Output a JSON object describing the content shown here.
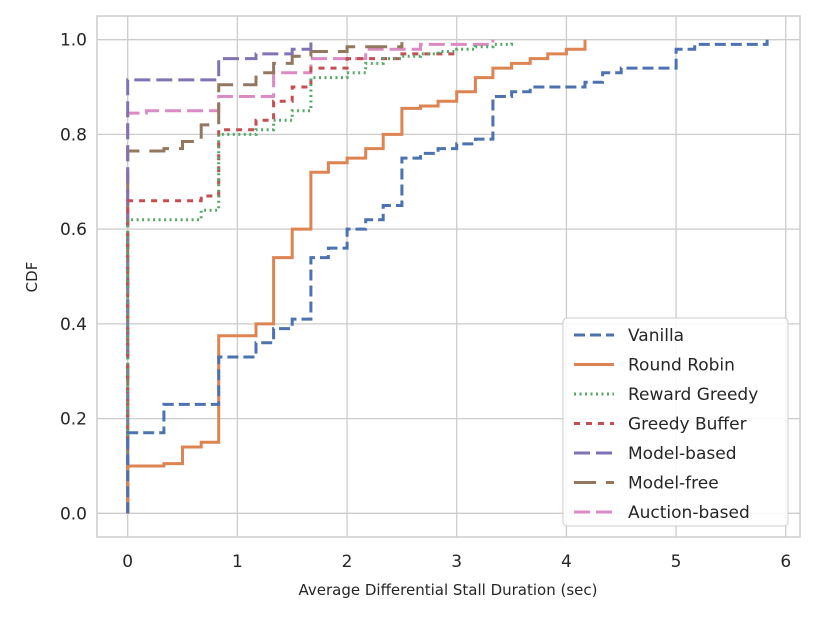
{
  "chart_data": {
    "type": "line",
    "subtype": "step-cdf",
    "title": "",
    "xlabel": "Average Differential Stall Duration (sec)",
    "ylabel": "CDF",
    "xlim": [
      -0.28,
      6.13
    ],
    "ylim": [
      -0.05,
      1.05
    ],
    "xticks": [
      0,
      1,
      2,
      3,
      4,
      5,
      6
    ],
    "yticks": [
      0.0,
      0.2,
      0.4,
      0.6,
      0.8,
      1.0
    ],
    "xtick_labels": [
      "0",
      "1",
      "2",
      "3",
      "4",
      "5",
      "6"
    ],
    "ytick_labels": [
      "0.0",
      "0.2",
      "0.4",
      "0.6",
      "0.8",
      "1.0"
    ],
    "grid": true,
    "legend_position": "bottom-right",
    "series": [
      {
        "name": "Vanilla",
        "color": "#4c72b0",
        "dash": "dashed",
        "x": [
          0,
          0,
          0.33,
          0.83,
          0.83,
          1.17,
          1.33,
          1.5,
          1.67,
          1.67,
          1.83,
          2.0,
          2.17,
          2.33,
          2.5,
          2.5,
          2.67,
          2.83,
          3.0,
          3.17,
          3.33,
          3.33,
          3.5,
          3.67,
          3.83,
          4.17,
          4.33,
          4.5,
          4.83,
          5.0,
          5.0,
          5.17,
          5.5,
          5.83
        ],
        "y": [
          0,
          0.17,
          0.23,
          0.25,
          0.33,
          0.36,
          0.39,
          0.41,
          0.42,
          0.54,
          0.56,
          0.6,
          0.62,
          0.65,
          0.67,
          0.75,
          0.76,
          0.77,
          0.78,
          0.79,
          0.81,
          0.88,
          0.89,
          0.9,
          0.9,
          0.91,
          0.93,
          0.94,
          0.94,
          0.95,
          0.98,
          0.99,
          0.99,
          1.0
        ]
      },
      {
        "name": "Round Robin",
        "color": "#dd8452",
        "dash": "solid",
        "x": [
          0,
          0,
          0.33,
          0.5,
          0.67,
          0.83,
          0.83,
          1.17,
          1.33,
          1.33,
          1.5,
          1.5,
          1.67,
          1.67,
          1.83,
          2.0,
          2.17,
          2.33,
          2.5,
          2.5,
          2.67,
          2.83,
          3.0,
          3.17,
          3.33,
          3.5,
          3.67,
          3.83,
          4.0,
          4.17,
          4.17
        ],
        "y": [
          0,
          0.1,
          0.105,
          0.14,
          0.15,
          0.23,
          0.375,
          0.4,
          0.41,
          0.54,
          0.545,
          0.6,
          0.61,
          0.72,
          0.74,
          0.75,
          0.77,
          0.8,
          0.82,
          0.855,
          0.86,
          0.87,
          0.89,
          0.92,
          0.94,
          0.95,
          0.96,
          0.97,
          0.98,
          0.985,
          1.0
        ]
      },
      {
        "name": "Reward Greedy",
        "color": "#55a868",
        "dash": "dotted",
        "x": [
          0,
          0,
          0.67,
          0.83,
          0.83,
          1.17,
          1.33,
          1.5,
          1.67,
          1.67,
          2.0,
          2.17,
          2.33,
          2.5,
          2.67,
          2.83,
          3.0,
          3.17,
          3.33,
          3.5
        ],
        "y": [
          0,
          0.62,
          0.64,
          0.67,
          0.8,
          0.81,
          0.83,
          0.85,
          0.88,
          0.92,
          0.93,
          0.95,
          0.96,
          0.965,
          0.97,
          0.975,
          0.98,
          0.985,
          0.99,
          1.0
        ]
      },
      {
        "name": "Greedy Buffer",
        "color": "#c44e52",
        "dash": "short-dashed",
        "x": [
          0,
          0,
          0.67,
          0.83,
          0.83,
          1.17,
          1.33,
          1.5,
          1.67,
          2.0,
          2.5,
          3.0
        ],
        "y": [
          0,
          0.66,
          0.67,
          0.68,
          0.81,
          0.83,
          0.87,
          0.9,
          0.94,
          0.96,
          0.97,
          0.98
        ]
      },
      {
        "name": "Model-based",
        "color": "#8172b3",
        "dash": "long-dashed",
        "x": [
          0,
          0,
          0.83,
          0.83,
          1.17,
          1.5,
          1.67
        ],
        "y": [
          0,
          0.915,
          0.93,
          0.96,
          0.97,
          0.98,
          1.0
        ]
      },
      {
        "name": "Model-free",
        "color": "#937860",
        "dash": "long-dash-gap",
        "x": [
          0,
          0,
          0.33,
          0.5,
          0.67,
          0.67,
          0.83,
          0.83,
          1.17,
          1.33,
          1.5,
          1.67,
          2.0,
          2.5
        ],
        "y": [
          0,
          0.765,
          0.77,
          0.785,
          0.79,
          0.82,
          0.83,
          0.905,
          0.93,
          0.95,
          0.965,
          0.975,
          0.985,
          0.995
        ]
      },
      {
        "name": "Auction-based",
        "color": "#da8bc3",
        "dash": "long-dashed",
        "x": [
          0,
          0,
          0.17,
          0.83,
          1.33,
          1.67,
          2.17,
          2.67,
          3.33
        ],
        "y": [
          0,
          0.845,
          0.85,
          0.88,
          0.93,
          0.96,
          0.98,
          0.99,
          1.0
        ]
      }
    ]
  }
}
